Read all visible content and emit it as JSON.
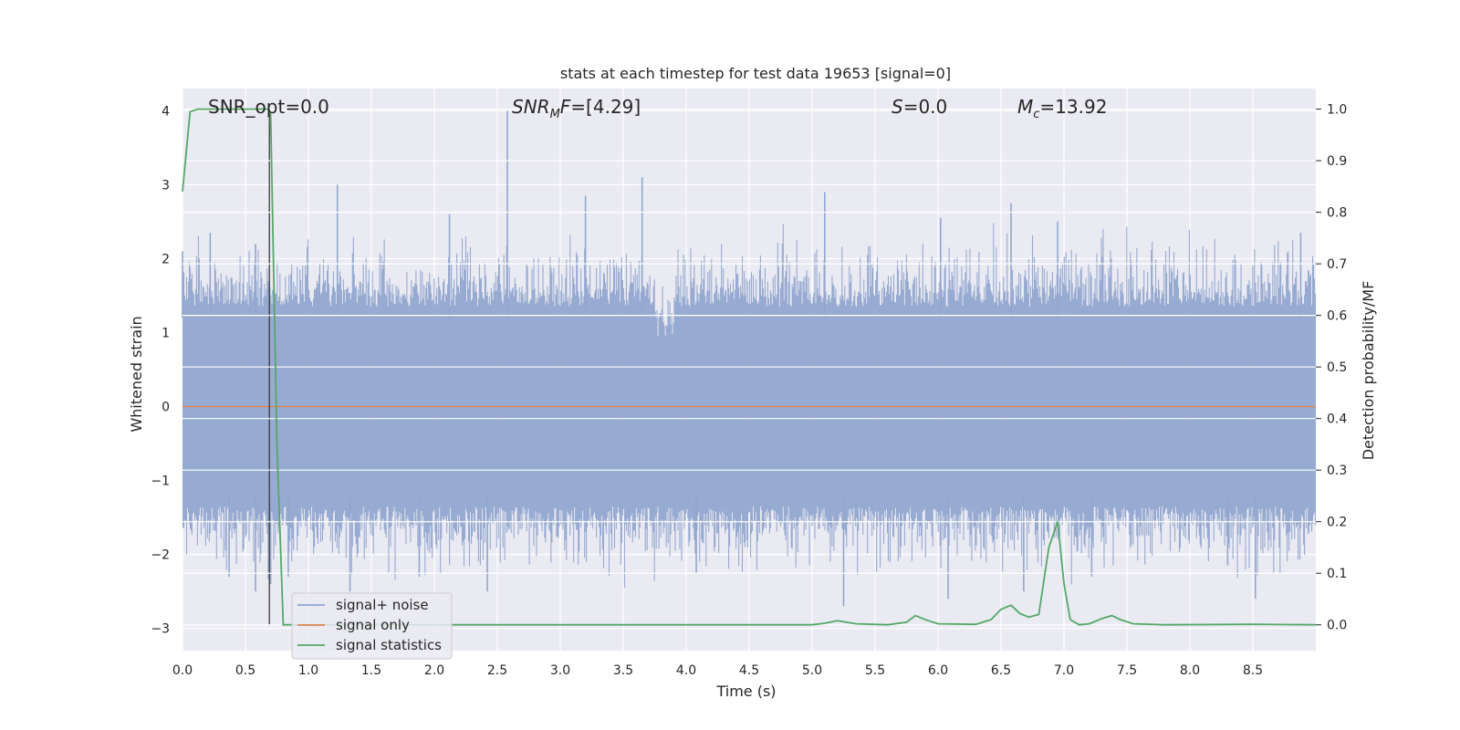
{
  "chart_data": {
    "type": "line",
    "title": "stats at each timestep for test data 19653 [signal=0]",
    "xlabel": "Time (s)",
    "ylabel": "Whitened strain",
    "y2label": "Detection probability/MF",
    "xlim": [
      0.0,
      9.0
    ],
    "ylim": [
      -3.3,
      4.3
    ],
    "y2lim": [
      -0.05,
      1.04
    ],
    "xticks": [
      "0.0",
      "0.5",
      "1.0",
      "1.5",
      "2.0",
      "2.5",
      "3.0",
      "3.5",
      "4.0",
      "4.5",
      "5.0",
      "5.5",
      "6.0",
      "6.5",
      "7.0",
      "7.5",
      "8.0",
      "8.5"
    ],
    "yticks": [
      "−3",
      "−2",
      "−1",
      "0",
      "1",
      "2",
      "3",
      "4"
    ],
    "y2ticks": [
      "0.0",
      "0.1",
      "0.2",
      "0.3",
      "0.4",
      "0.5",
      "0.6",
      "0.7",
      "0.8",
      "0.9",
      "1.0"
    ],
    "grid": true,
    "legend_position": "lower-left",
    "annotations": {
      "snr_opt": "SNR_opt=0.0",
      "snr_mf_main": "SNR",
      "snr_mf_sub": "M",
      "snr_mf_rest": "F=[4.29]",
      "s_main": "S",
      "s_rest": "=0.0",
      "mc_main": "M",
      "mc_sub": "c",
      "mc_rest": "=13.92"
    },
    "marker_line_x": 0.69,
    "series": [
      {
        "name": "signal+ noise",
        "color": "#92a6cf",
        "axis": "left",
        "envelope_typical": [
          -1.5,
          1.5
        ],
        "notable_spikes": [
          {
            "x": 0.0,
            "y": 2.1
          },
          {
            "x": 0.22,
            "y": 2.35
          },
          {
            "x": 0.37,
            "y": -2.3
          },
          {
            "x": 0.58,
            "y": 2.2
          },
          {
            "x": 0.58,
            "y": -2.5
          },
          {
            "x": 0.7,
            "y": -2.4
          },
          {
            "x": 0.84,
            "y": -2.3
          },
          {
            "x": 1.23,
            "y": 3.0
          },
          {
            "x": 1.33,
            "y": -2.5
          },
          {
            "x": 1.88,
            "y": -2.3
          },
          {
            "x": 2.12,
            "y": 2.6
          },
          {
            "x": 2.42,
            "y": -2.5
          },
          {
            "x": 2.58,
            "y": 4.0
          },
          {
            "x": 3.2,
            "y": 2.85
          },
          {
            "x": 3.65,
            "y": 3.1
          },
          {
            "x": 4.08,
            "y": -2.25
          },
          {
            "x": 5.1,
            "y": 2.9
          },
          {
            "x": 5.25,
            "y": -2.7
          },
          {
            "x": 6.02,
            "y": 2.55
          },
          {
            "x": 6.08,
            "y": -2.6
          },
          {
            "x": 6.58,
            "y": 2.75
          },
          {
            "x": 6.68,
            "y": -2.5
          },
          {
            "x": 6.95,
            "y": 2.5
          },
          {
            "x": 7.22,
            "y": -2.3
          },
          {
            "x": 8.3,
            "y": -2.15
          },
          {
            "x": 8.52,
            "y": -2.6
          },
          {
            "x": 8.88,
            "y": 2.35
          }
        ]
      },
      {
        "name": "signal only",
        "color": "#dd8452",
        "axis": "left",
        "x": [
          0.0,
          9.0
        ],
        "y": [
          0.0,
          0.0
        ]
      },
      {
        "name": "signal statistics",
        "color": "#55a868",
        "axis": "right",
        "x": [
          0.0,
          0.06,
          0.12,
          0.2,
          0.3,
          0.5,
          0.68,
          0.7,
          0.75,
          0.8,
          1.0,
          2.0,
          3.0,
          4.0,
          5.0,
          5.1,
          5.2,
          5.35,
          5.6,
          5.75,
          5.82,
          5.9,
          6.0,
          6.3,
          6.42,
          6.5,
          6.58,
          6.65,
          6.72,
          6.8,
          6.88,
          6.95,
          7.0,
          7.05,
          7.12,
          7.2,
          7.3,
          7.38,
          7.45,
          7.55,
          7.8,
          8.5,
          9.0
        ],
        "y": [
          0.84,
          0.995,
          1.0,
          1.0,
          1.0,
          1.0,
          1.0,
          0.99,
          0.35,
          0.0,
          0.0,
          0.0,
          0.0,
          0.0,
          0.0,
          0.003,
          0.008,
          0.002,
          0.0,
          0.005,
          0.018,
          0.01,
          0.002,
          0.001,
          0.01,
          0.03,
          0.038,
          0.022,
          0.015,
          0.02,
          0.15,
          0.2,
          0.08,
          0.01,
          0.0,
          0.002,
          0.012,
          0.018,
          0.01,
          0.002,
          0.0,
          0.001,
          0.0
        ]
      }
    ]
  }
}
